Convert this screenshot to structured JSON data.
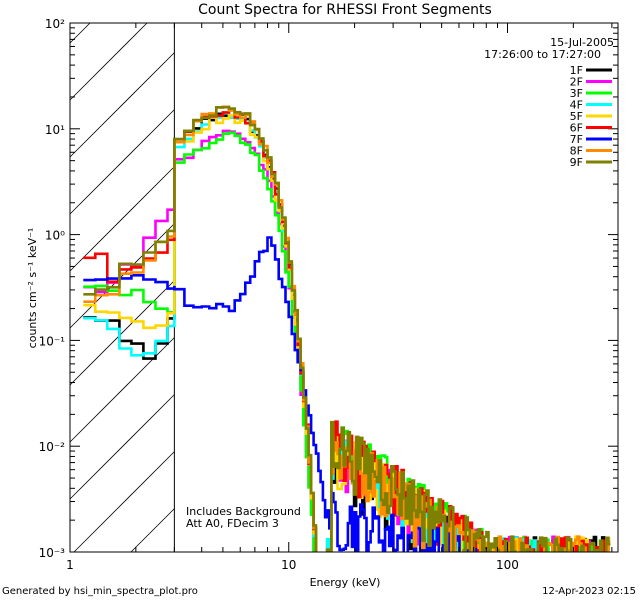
{
  "chart_data": {
    "type": "line",
    "title": "Count Spectra for RHESSI Front Segments",
    "date": "15-Jul-2005",
    "time_range": "17:26:00 to 17:27:00",
    "xlabel": "Energy (keV)",
    "ylabel": "counts cm⁻² s⁻¹ keV⁻¹",
    "xscale": "log",
    "yscale": "log",
    "xlim": [
      1,
      320
    ],
    "ylim": [
      0.001,
      100
    ],
    "x_ticks": [
      {
        "value": 1,
        "label": "1"
      },
      {
        "value": 10,
        "label": "10"
      },
      {
        "value": 100,
        "label": "100"
      }
    ],
    "y_ticks": [
      {
        "value": 100,
        "label": "10²"
      },
      {
        "value": 10,
        "label": "10¹"
      },
      {
        "value": 1,
        "label": "10⁰"
      },
      {
        "value": 0.1,
        "label": "10⁻¹"
      },
      {
        "value": 0.01,
        "label": "10⁻²"
      },
      {
        "value": 0.001,
        "label": "10⁻³"
      }
    ],
    "excluded_region": {
      "from": 1,
      "to": 3,
      "style": "hatched"
    },
    "annotations": [
      "Includes Background",
      "Att A0, FDecim 3"
    ],
    "legend": {
      "placement": "top-right"
    },
    "series": [
      {
        "name": "1F",
        "color": "#000000",
        "peak": 13.0,
        "low": [
          0.16,
          0.15,
          0.09,
          0.065,
          0.1,
          0.15
        ]
      },
      {
        "name": "2F",
        "color": "#ff00ff",
        "peak": 8.5,
        "low": [
          0.3,
          0.35,
          0.5,
          0.9,
          1.3,
          1.8
        ]
      },
      {
        "name": "3F",
        "color": "#00ff00",
        "peak": 8.0,
        "low": [
          0.35,
          0.32,
          0.28,
          0.25,
          0.2,
          0.17
        ]
      },
      {
        "name": "4F",
        "color": "#00ffff",
        "peak": 12.5,
        "low": [
          0.15,
          0.12,
          0.08,
          0.07,
          0.09,
          0.13
        ]
      },
      {
        "name": "5F",
        "color": "#ffd700",
        "peak": 12.0,
        "low": [
          0.2,
          0.18,
          0.15,
          0.13,
          0.15,
          0.18
        ]
      },
      {
        "name": "6F",
        "color": "#ff0000",
        "peak": 13.5,
        "low": [
          0.65,
          0.35,
          0.45,
          0.55,
          0.7,
          0.9
        ]
      },
      {
        "name": "7F",
        "color": "#0000ff",
        "peak": 0.95,
        "low": [
          0.35,
          0.38,
          0.42,
          0.4,
          0.36,
          0.3
        ]
      },
      {
        "name": "8F",
        "color": "#ff8c00",
        "peak": 14.0,
        "low": [
          0.25,
          0.3,
          0.4,
          0.6,
          0.8,
          1.0
        ]
      },
      {
        "name": "9F",
        "color": "#808000",
        "peak": 14.5,
        "low": [
          0.28,
          0.3,
          0.5,
          0.7,
          0.95,
          1.2
        ]
      }
    ]
  },
  "footer": {
    "left": "Generated by hsi_min_spectra_plot.pro",
    "right": "12-Apr-2023 02:15"
  }
}
